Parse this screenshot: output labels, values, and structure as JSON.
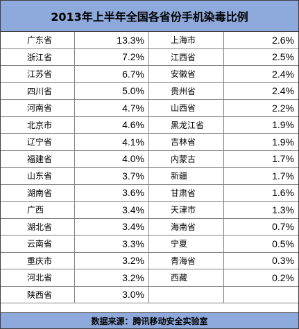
{
  "chart_data": {
    "type": "table",
    "title": "2013年上半年全国各省份手机染毒比例",
    "source": "数据来源：腾讯移动安全实验室",
    "left_column": [
      {
        "province": "广东省",
        "value": "13.3%"
      },
      {
        "province": "浙江省",
        "value": "7.2%"
      },
      {
        "province": "江苏省",
        "value": "6.7%"
      },
      {
        "province": "四川省",
        "value": "5.0%"
      },
      {
        "province": "河南省",
        "value": "4.7%"
      },
      {
        "province": "北京市",
        "value": "4.6%"
      },
      {
        "province": "辽宁省",
        "value": "4.1%"
      },
      {
        "province": "福建省",
        "value": "4.0%"
      },
      {
        "province": "山东省",
        "value": "3.7%"
      },
      {
        "province": "湖南省",
        "value": "3.6%"
      },
      {
        "province": "广西",
        "value": "3.4%"
      },
      {
        "province": "湖北省",
        "value": "3.4%"
      },
      {
        "province": "云南省",
        "value": "3.3%"
      },
      {
        "province": "重庆市",
        "value": "3.2%"
      },
      {
        "province": "河北省",
        "value": "3.2%"
      },
      {
        "province": "陕西省",
        "value": "3.0%"
      }
    ],
    "right_column": [
      {
        "province": "上海市",
        "value": "2.6%"
      },
      {
        "province": "江西省",
        "value": "2.5%"
      },
      {
        "province": "安徽省",
        "value": "2.4%"
      },
      {
        "province": "贵州省",
        "value": "2.4%"
      },
      {
        "province": "山西省",
        "value": "2.2%"
      },
      {
        "province": "黑龙江省",
        "value": "1.9%"
      },
      {
        "province": "吉林省",
        "value": "1.9%"
      },
      {
        "province": "内蒙古",
        "value": "1.7%"
      },
      {
        "province": "新疆",
        "value": "1.7%"
      },
      {
        "province": "甘肃省",
        "value": "1.6%"
      },
      {
        "province": "天津市",
        "value": "1.3%"
      },
      {
        "province": "海南省",
        "value": "0.7%"
      },
      {
        "province": "宁夏",
        "value": "0.5%"
      },
      {
        "province": "青海省",
        "value": "0.3%"
      },
      {
        "province": "西藏",
        "value": "0.2%"
      },
      {
        "province": "",
        "value": ""
      }
    ]
  },
  "colors": {
    "header_bg": "#8ea9db",
    "border": "#7f7f7f"
  }
}
